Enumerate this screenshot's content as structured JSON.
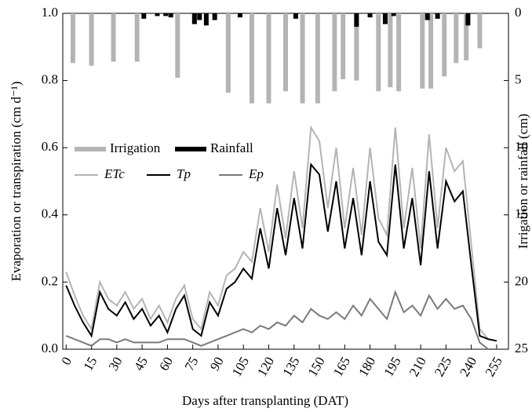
{
  "chart_data": {
    "type": "line",
    "x_label": "Days after transplanting (DAT)",
    "y_label": "Evaporation or transpiration (cm d⁻¹)",
    "y2_label": "Irrigation  or rainfall (cm)",
    "xlim": [
      -2,
      262
    ],
    "xticks": [
      0,
      15,
      30,
      45,
      60,
      75,
      90,
      105,
      120,
      135,
      150,
      165,
      180,
      195,
      210,
      225,
      240,
      255
    ],
    "ylim": [
      0,
      1
    ],
    "yticks": [
      {
        "value": 0,
        "label": "0.0"
      },
      0.2,
      0.4,
      0.6,
      0.8,
      {
        "value": 1,
        "label": "1.0"
      }
    ],
    "y2lim": [
      25,
      0
    ],
    "y2ticks": [
      0,
      5,
      10,
      15,
      20,
      25
    ],
    "x": [
      0,
      5,
      10,
      15,
      20,
      25,
      30,
      35,
      40,
      45,
      50,
      55,
      60,
      65,
      70,
      75,
      80,
      85,
      90,
      95,
      100,
      105,
      110,
      115,
      120,
      125,
      130,
      135,
      140,
      145,
      150,
      155,
      160,
      165,
      170,
      175,
      180,
      185,
      190,
      195,
      200,
      205,
      210,
      215,
      220,
      225,
      230,
      235,
      240,
      245,
      250,
      255
    ],
    "series": [
      {
        "name": "Irrigation",
        "kind": "bar",
        "axis": "y2",
        "color": "#b4b4b4",
        "x": [
          4,
          15,
          28,
          42,
          66,
          96,
          110,
          120,
          130,
          140,
          149,
          159,
          164,
          172,
          185,
          192,
          197,
          211,
          216,
          224,
          231,
          237,
          245
        ],
        "values": [
          3.7,
          3.9,
          3.6,
          3.6,
          4.8,
          5.9,
          6.7,
          6.7,
          5.8,
          6.7,
          6.7,
          5.8,
          4.9,
          5.0,
          5.8,
          5.5,
          5.8,
          5.6,
          5.6,
          4.7,
          3.7,
          3.5,
          2.6
        ]
      },
      {
        "name": "Rainfall",
        "kind": "bar",
        "axis": "y2",
        "color": "#000000",
        "x": [
          46,
          54,
          59,
          62,
          76,
          79,
          83,
          88,
          103,
          136,
          172,
          180,
          189,
          194,
          214,
          220,
          238
        ],
        "values": [
          0.4,
          0.2,
          0.2,
          0.3,
          0.8,
          0.5,
          0.9,
          0.5,
          0.3,
          0.4,
          1.0,
          0.3,
          0.8,
          0.2,
          0.5,
          0.4,
          0.9
        ]
      },
      {
        "name": "ETc",
        "kind": "line",
        "color": "#b4b4b4",
        "values": [
          0.23,
          0.16,
          0.1,
          0.06,
          0.2,
          0.15,
          0.13,
          0.17,
          0.12,
          0.15,
          0.09,
          0.13,
          0.08,
          0.15,
          0.19,
          0.09,
          0.06,
          0.17,
          0.13,
          0.22,
          0.24,
          0.29,
          0.26,
          0.42,
          0.29,
          0.49,
          0.33,
          0.53,
          0.36,
          0.66,
          0.62,
          0.42,
          0.6,
          0.36,
          0.54,
          0.34,
          0.6,
          0.39,
          0.34,
          0.66,
          0.36,
          0.54,
          0.3,
          0.64,
          0.36,
          0.6,
          0.53,
          0.56,
          0.31,
          0.06,
          0.03,
          0.025
        ]
      },
      {
        "name": "Tp",
        "kind": "line",
        "color": "#000000",
        "values": [
          0.19,
          0.13,
          0.08,
          0.04,
          0.17,
          0.12,
          0.1,
          0.14,
          0.09,
          0.12,
          0.07,
          0.1,
          0.05,
          0.12,
          0.16,
          0.06,
          0.04,
          0.14,
          0.1,
          0.18,
          0.2,
          0.24,
          0.21,
          0.36,
          0.24,
          0.42,
          0.28,
          0.45,
          0.3,
          0.55,
          0.52,
          0.35,
          0.5,
          0.3,
          0.45,
          0.28,
          0.5,
          0.32,
          0.28,
          0.55,
          0.3,
          0.45,
          0.25,
          0.53,
          0.3,
          0.5,
          0.44,
          0.47,
          0.25,
          0.04,
          0.03,
          0.025
        ]
      },
      {
        "name": "Ep",
        "kind": "line",
        "color": "#7a7a7a",
        "values": [
          0.04,
          0.03,
          0.02,
          0.01,
          0.03,
          0.03,
          0.02,
          0.03,
          0.02,
          0.02,
          0.02,
          0.02,
          0.03,
          0.03,
          0.03,
          0.02,
          0.01,
          0.02,
          0.03,
          0.04,
          0.05,
          0.06,
          0.05,
          0.07,
          0.06,
          0.08,
          0.07,
          0.1,
          0.08,
          0.12,
          0.1,
          0.09,
          0.11,
          0.09,
          0.13,
          0.1,
          0.15,
          0.12,
          0.09,
          0.17,
          0.11,
          0.13,
          0.1,
          0.16,
          0.12,
          0.15,
          0.12,
          0.13,
          0.09,
          0.02,
          0,
          0
        ]
      }
    ]
  }
}
